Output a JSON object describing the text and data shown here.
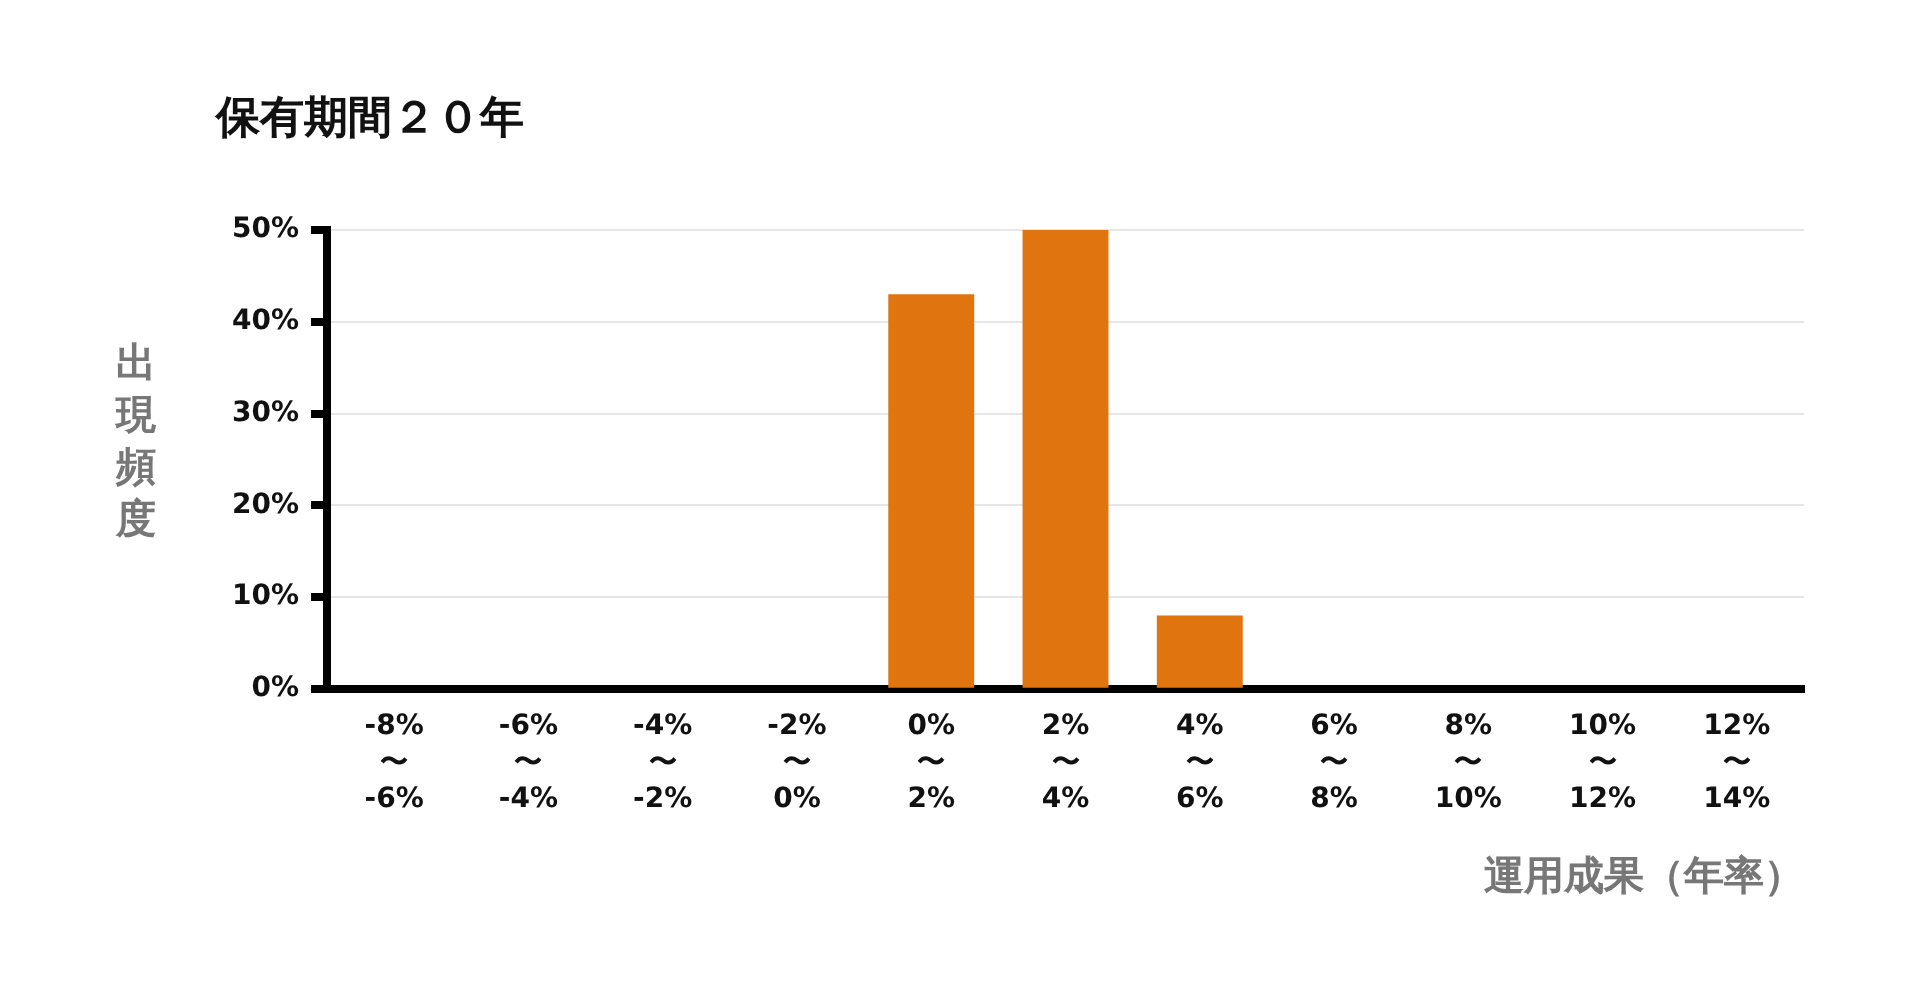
{
  "chart_data": {
    "type": "bar",
    "title": "保有期間２０年",
    "ylabel": "出現頻度",
    "xlabel": "運用成果（年率）",
    "categories": [
      "-8%\n〜\n-6%",
      "-6%\n〜\n-4%",
      "-4%\n〜\n-2%",
      "-2%\n〜\n0%",
      "0%\n〜\n2%",
      "2%\n〜\n4%",
      "4%\n〜\n6%",
      "6%\n〜\n8%",
      "8%\n〜\n10%",
      "10%\n〜\n12%",
      "12%\n〜\n14%"
    ],
    "values": [
      0,
      0,
      0,
      0,
      43,
      50,
      8,
      0,
      0,
      0,
      0
    ],
    "color": "#e07510",
    "ylim": [
      0,
      50
    ],
    "yticks": [
      {
        "value": 0,
        "label": "0%"
      },
      {
        "value": 10,
        "label": "10%"
      },
      {
        "value": 20,
        "label": "20%"
      },
      {
        "value": 30,
        "label": "30%"
      },
      {
        "value": 40,
        "label": "40%"
      },
      {
        "value": 50,
        "label": "50%"
      }
    ],
    "grid": "y"
  }
}
